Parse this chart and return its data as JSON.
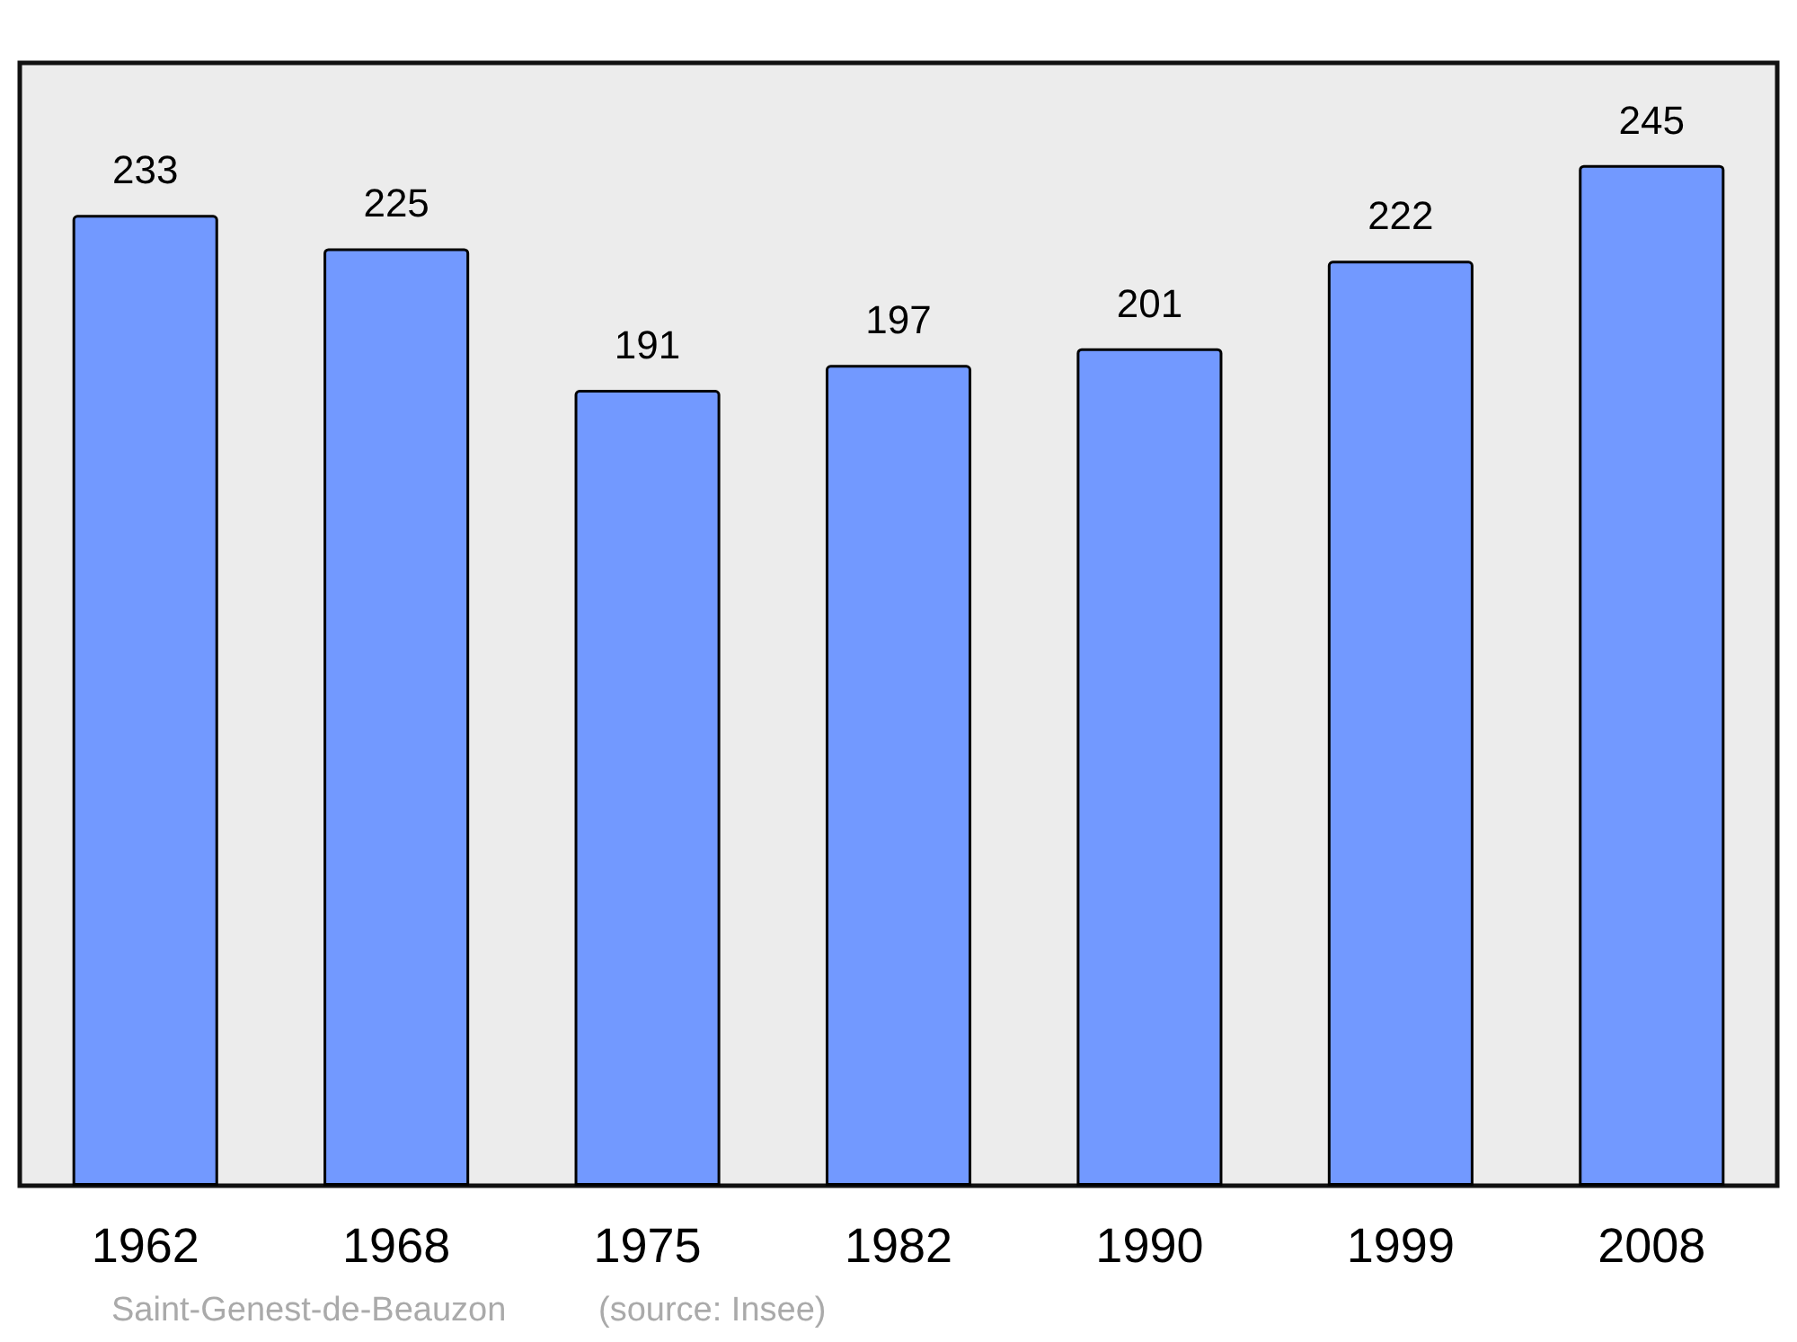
{
  "chart_data": {
    "type": "bar",
    "categories": [
      "1962",
      "1968",
      "1975",
      "1982",
      "1990",
      "1999",
      "2008"
    ],
    "values": [
      233,
      225,
      191,
      197,
      201,
      222,
      245
    ],
    "color": "#7299ff",
    "data_labels": true,
    "annotations": [
      "Saint-Genest-de-Beauzon",
      "(source: Insee)"
    ]
  }
}
